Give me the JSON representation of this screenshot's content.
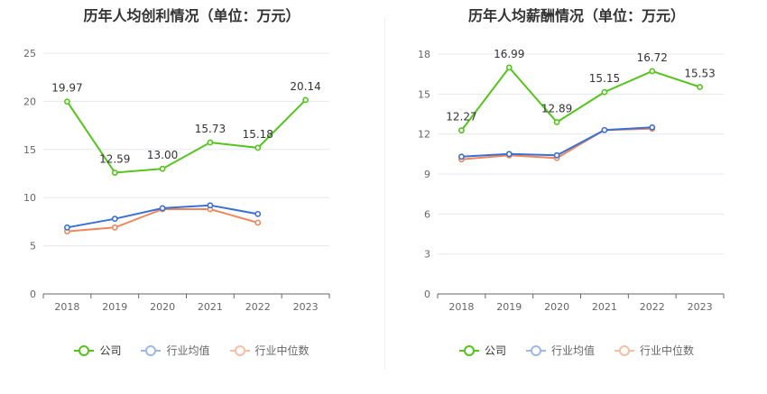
{
  "chart_data": [
    {
      "type": "line",
      "title": "历年人均创利情况（单位：万元）",
      "categories": [
        "2018",
        "2019",
        "2020",
        "2021",
        "2022",
        "2023"
      ],
      "yticks": [
        "0",
        "5",
        "10",
        "15",
        "20",
        "25"
      ],
      "ylim": [
        0,
        25
      ],
      "grid": true,
      "legend_position": "bottom",
      "series": [
        {
          "name": "公司",
          "color": "#52c41a",
          "values": [
            19.97,
            12.59,
            13.0,
            15.73,
            15.18,
            20.14
          ],
          "labels": [
            "19.97",
            "12.59",
            "13.00",
            "15.73",
            "15.18",
            "20.14"
          ]
        },
        {
          "name": "行业均值",
          "color": "#3a6fd8",
          "values": [
            6.9,
            7.8,
            8.9,
            9.2,
            8.3,
            null
          ]
        },
        {
          "name": "行业中位数",
          "color": "#f0865a",
          "values": [
            6.5,
            6.9,
            8.8,
            8.8,
            7.4,
            null
          ]
        }
      ]
    },
    {
      "type": "line",
      "title": "历年人均薪酬情况（单位：万元）",
      "categories": [
        "2018",
        "2019",
        "2020",
        "2021",
        "2022",
        "2023"
      ],
      "yticks": [
        "0",
        "3",
        "6",
        "9",
        "12",
        "15",
        "18"
      ],
      "ylim": [
        0,
        18
      ],
      "grid": true,
      "legend_position": "bottom",
      "series": [
        {
          "name": "公司",
          "color": "#52c41a",
          "values": [
            12.27,
            16.99,
            12.89,
            15.15,
            16.72,
            15.53
          ],
          "labels": [
            "12.27",
            "16.99",
            "12.89",
            "15.15",
            "16.72",
            "15.53"
          ]
        },
        {
          "name": "行业均值",
          "color": "#3a6fd8",
          "values": [
            10.3,
            10.5,
            10.4,
            12.3,
            12.5,
            null
          ]
        },
        {
          "name": "行业中位数",
          "color": "#f0865a",
          "values": [
            10.1,
            10.4,
            10.2,
            12.3,
            12.4,
            null
          ]
        }
      ]
    }
  ],
  "legend": {
    "company": "公司",
    "industry_mean": "行业均值",
    "industry_median": "行业中位数"
  }
}
